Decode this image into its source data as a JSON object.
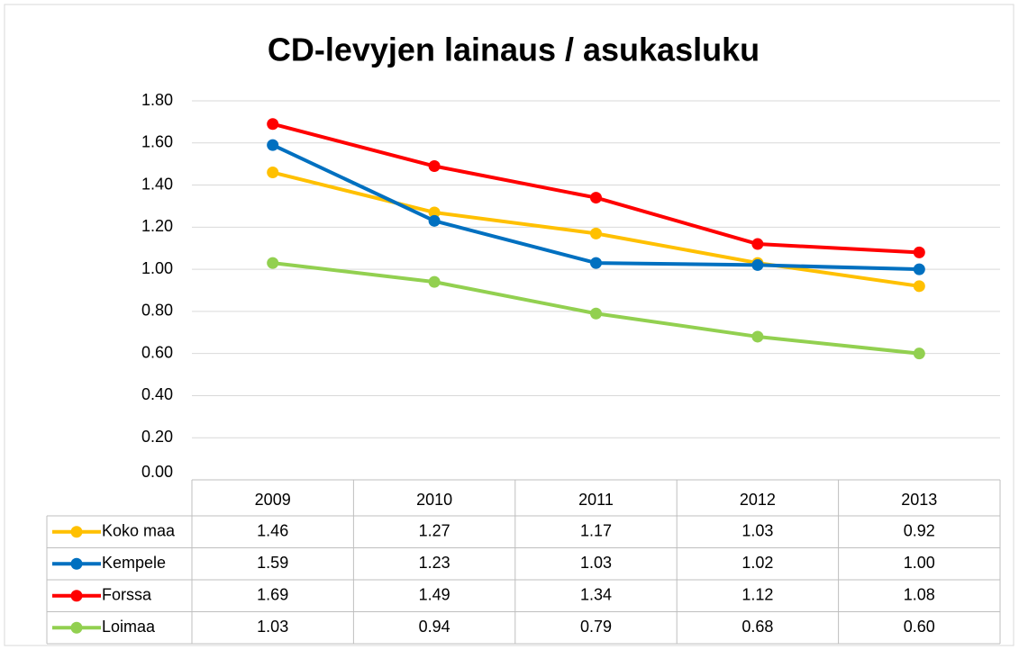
{
  "chart_data": {
    "type": "line",
    "title": "CD-levyjen lainaus / asukasluku",
    "categories": [
      "2009",
      "2010",
      "2011",
      "2012",
      "2013"
    ],
    "series": [
      {
        "name": "Koko maa",
        "color": "#FFC000",
        "values": [
          1.46,
          1.27,
          1.17,
          1.03,
          0.92
        ],
        "value_labels": [
          "1.46",
          "1.27",
          "1.17",
          "1.03",
          "0.92"
        ]
      },
      {
        "name": "Kempele",
        "color": "#0070C0",
        "values": [
          1.59,
          1.23,
          1.03,
          1.02,
          1
        ],
        "value_labels": [
          "1.59",
          "1.23",
          "1.03",
          "1.02",
          "1.00"
        ]
      },
      {
        "name": "Forssa",
        "color": "#FF0000",
        "values": [
          1.69,
          1.49,
          1.34,
          1.12,
          1.08
        ],
        "value_labels": [
          "1.69",
          "1.49",
          "1.34",
          "1.12",
          "1.08"
        ]
      },
      {
        "name": "Loimaa",
        "color": "#92D050",
        "values": [
          1.03,
          0.94,
          0.79,
          0.68,
          0.6
        ],
        "value_labels": [
          "1.03",
          "0.94",
          "0.79",
          "0.68",
          "0.60"
        ]
      }
    ],
    "ylim": [
      0,
      1.8
    ],
    "yticks": [
      {
        "value": 0,
        "label": "0.00"
      },
      {
        "value": 0.2,
        "label": "0.20"
      },
      {
        "value": 0.4,
        "label": "0.40"
      },
      {
        "value": 0.6,
        "label": "0.60"
      },
      {
        "value": 0.8,
        "label": "0.80"
      },
      {
        "value": 1,
        "label": "1.00"
      },
      {
        "value": 1.2,
        "label": "1.20"
      },
      {
        "value": 1.4,
        "label": "1.40"
      },
      {
        "value": 1.6,
        "label": "1.60"
      },
      {
        "value": 1.8,
        "label": "1.80"
      }
    ],
    "grid": true
  }
}
